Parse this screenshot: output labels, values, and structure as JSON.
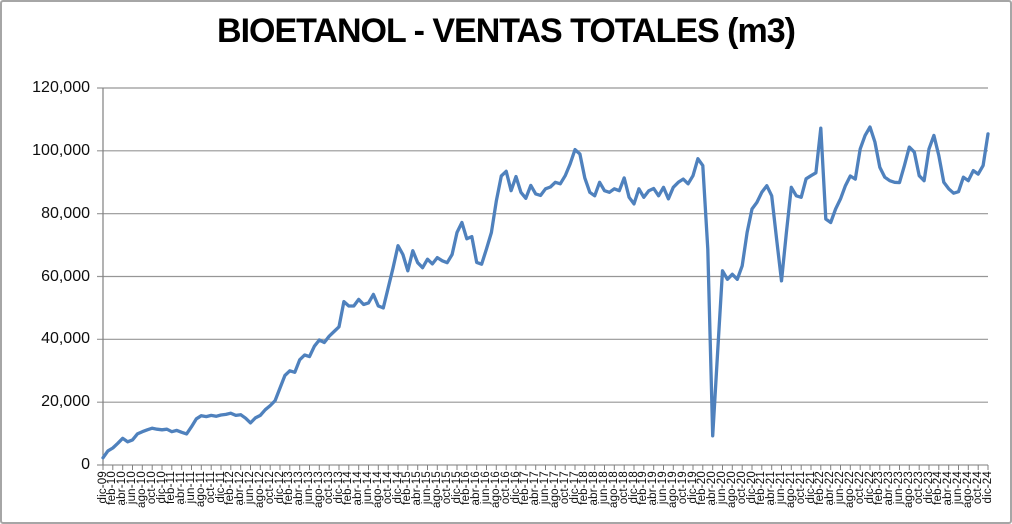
{
  "chart": {
    "title": "BIOETANOL - VENTAS TOTALES (m3)"
  },
  "chart_data": {
    "type": "line",
    "title": "BIOETANOL - VENTAS TOTALES (m3)",
    "legend": "none",
    "grid": true,
    "y_axis": {
      "min": 0,
      "max": 120000,
      "tick_step": 20000,
      "tick_labels": [
        "0",
        "20,000",
        "40,000",
        "60,000",
        "80,000",
        "100,000",
        "120,000"
      ]
    },
    "x_axis": {
      "months_per_tick": 2,
      "tick_labels": [
        "dic-09",
        "feb-10",
        "abr-10",
        "jun-10",
        "ago-10",
        "oct-10",
        "dic-10",
        "feb-11",
        "abr-11",
        "jun-11",
        "ago-11",
        "oct-11",
        "dic-11",
        "feb-12",
        "abr-12",
        "jun-12",
        "ago-12",
        "oct-12",
        "dic-12",
        "feb-13",
        "abr-13",
        "jun-13",
        "ago-13",
        "oct-13",
        "dic-13",
        "feb-14",
        "abr-14",
        "jun-14",
        "ago-14",
        "oct-14",
        "dic-14",
        "feb-15",
        "abr-15",
        "jun-15",
        "ago-15",
        "oct-15",
        "dic-15",
        "feb-16",
        "abr-16",
        "jun-16",
        "ago-16",
        "oct-16",
        "dic-16",
        "feb-17",
        "abr-17",
        "jun-17",
        "ago-17",
        "oct-17",
        "dic-17",
        "feb-18",
        "abr-18",
        "jun-18",
        "ago-18",
        "oct-18",
        "dic-18",
        "feb-19",
        "abr-19",
        "jun-19",
        "ago-19",
        "oct-19",
        "dic-19",
        "feb-20",
        "abr-20",
        "jun-20",
        "ago-20",
        "oct-20",
        "dic-20",
        "feb-21",
        "abr-21",
        "jun-21",
        "ago-21",
        "oct-21",
        "dic-21",
        "feb-22",
        "abr-22",
        "jun-22",
        "ago-22",
        "oct-22",
        "dic-22",
        "feb-23",
        "abr-23",
        "jun-23",
        "ago-23",
        "oct-23",
        "dic-23",
        "feb-24",
        "abr-24",
        "jun-24",
        "ago-24",
        "oct-24",
        "dic-24"
      ]
    },
    "values": [
      2300,
      4500,
      5400,
      6900,
      8500,
      7400,
      8000,
      9900,
      10600,
      11200,
      11700,
      11400,
      11200,
      11400,
      10600,
      11000,
      10400,
      9900,
      12200,
      14700,
      15700,
      15400,
      15800,
      15500,
      15900,
      16100,
      16500,
      15800,
      16000,
      14900,
      13400,
      15000,
      15800,
      17600,
      18900,
      20500,
      24500,
      28500,
      30000,
      29500,
      33500,
      35000,
      34500,
      37800,
      39800,
      39000,
      41000,
      42500,
      44000,
      52000,
      50600,
      50600,
      52700,
      51100,
      51600,
      54300,
      50600,
      50000,
      56400,
      62800,
      69800,
      67000,
      61800,
      68200,
      64400,
      62800,
      65500,
      64000,
      66000,
      65000,
      64400,
      67000,
      74000,
      77200,
      72000,
      72700,
      64500,
      63900,
      68800,
      74000,
      84000,
      92000,
      93500,
      87300,
      91800,
      86800,
      84900,
      89000,
      86300,
      85800,
      87900,
      88500,
      90000,
      89500,
      92100,
      95800,
      100400,
      99000,
      91400,
      86800,
      85700,
      90000,
      87300,
      86800,
      87900,
      87300,
      91400,
      85200,
      83100,
      87900,
      85200,
      87300,
      88000,
      85700,
      88400,
      84700,
      88400,
      90000,
      91000,
      89500,
      92100,
      97500,
      95300,
      68700,
      9300,
      35700,
      61800,
      59100,
      60700,
      59100,
      63400,
      74000,
      81500,
      83600,
      86800,
      88900,
      85700,
      71900,
      58600,
      74000,
      88400,
      85700,
      85200,
      91100,
      92100,
      93000,
      107200,
      78300,
      77200,
      81500,
      84700,
      88900,
      92000,
      91000,
      100600,
      104900,
      107600,
      102800,
      94800,
      91600,
      90500,
      90000,
      89900,
      95300,
      101200,
      99600,
      92100,
      90500,
      100600,
      104900,
      98500,
      90000,
      87900,
      86500,
      87000,
      91600,
      90500,
      93700,
      92600,
      95300,
      105400
    ],
    "colors": {
      "line": "#4F81BD",
      "gridline": "#969696",
      "axis": "#808080",
      "title_text": "#000000",
      "frame_border": "#A6A6A6"
    }
  }
}
